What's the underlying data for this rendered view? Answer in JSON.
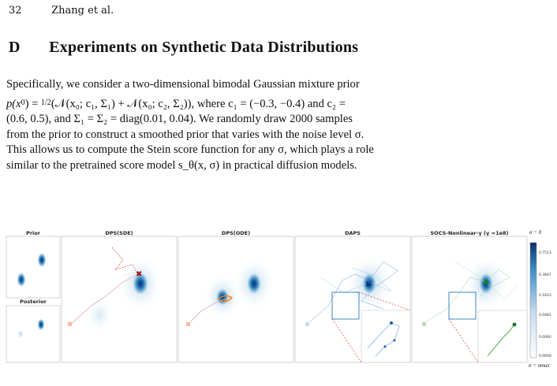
{
  "header": {
    "page_number": "32",
    "authors": "Zhang et al."
  },
  "section": {
    "number": "D",
    "title": "Experiments on Synthetic Data Distributions"
  },
  "paragraph": {
    "line1": "Specifically, we consider a two-dimensional bimodal Gaussian mixture prior",
    "line2_a": "p(x",
    "line2_b": ") = ",
    "half": "1/2",
    "line2_c": "(𝒩(x₀; c₁, Σ₁) + 𝒩(x₀; c₂, Σ₂)), where c₁ = (−0.3, −0.4) and c₂ =",
    "line3": "(0.6, 0.5), and Σ₁ = Σ₂ = diag(0.01, 0.04). We randomly draw 2000 samples",
    "line4": "from the prior to construct a smoothed prior that varies with the noise level σ.",
    "line5": "This allows us to compute the Stein score function for any σ, which plays a role",
    "line6": "similar to the pretrained score model s_θ(x, σ) in practical diffusion models."
  },
  "figure": {
    "panel_titles": {
      "prior": "Prior",
      "posterior": "Posterior",
      "dps_sde": "DPS(SDE)",
      "dps_ode": "DPS(ODE)",
      "daps": "DAPS",
      "socs": "SOCS-Nonlinear-γ (γ =1e8)"
    },
    "colorbar": {
      "top_label": "σ = 0",
      "bottom_label": "σ = σmax",
      "ticks": [
        "0.7513",
        "0.3847",
        "0.1623",
        "0.0481",
        "0.0060",
        "0.0000"
      ]
    },
    "colors": {
      "blue": "#1f5fa8",
      "red": "#d62728",
      "green": "#2ca02c",
      "orange": "#ff7f0e"
    }
  }
}
